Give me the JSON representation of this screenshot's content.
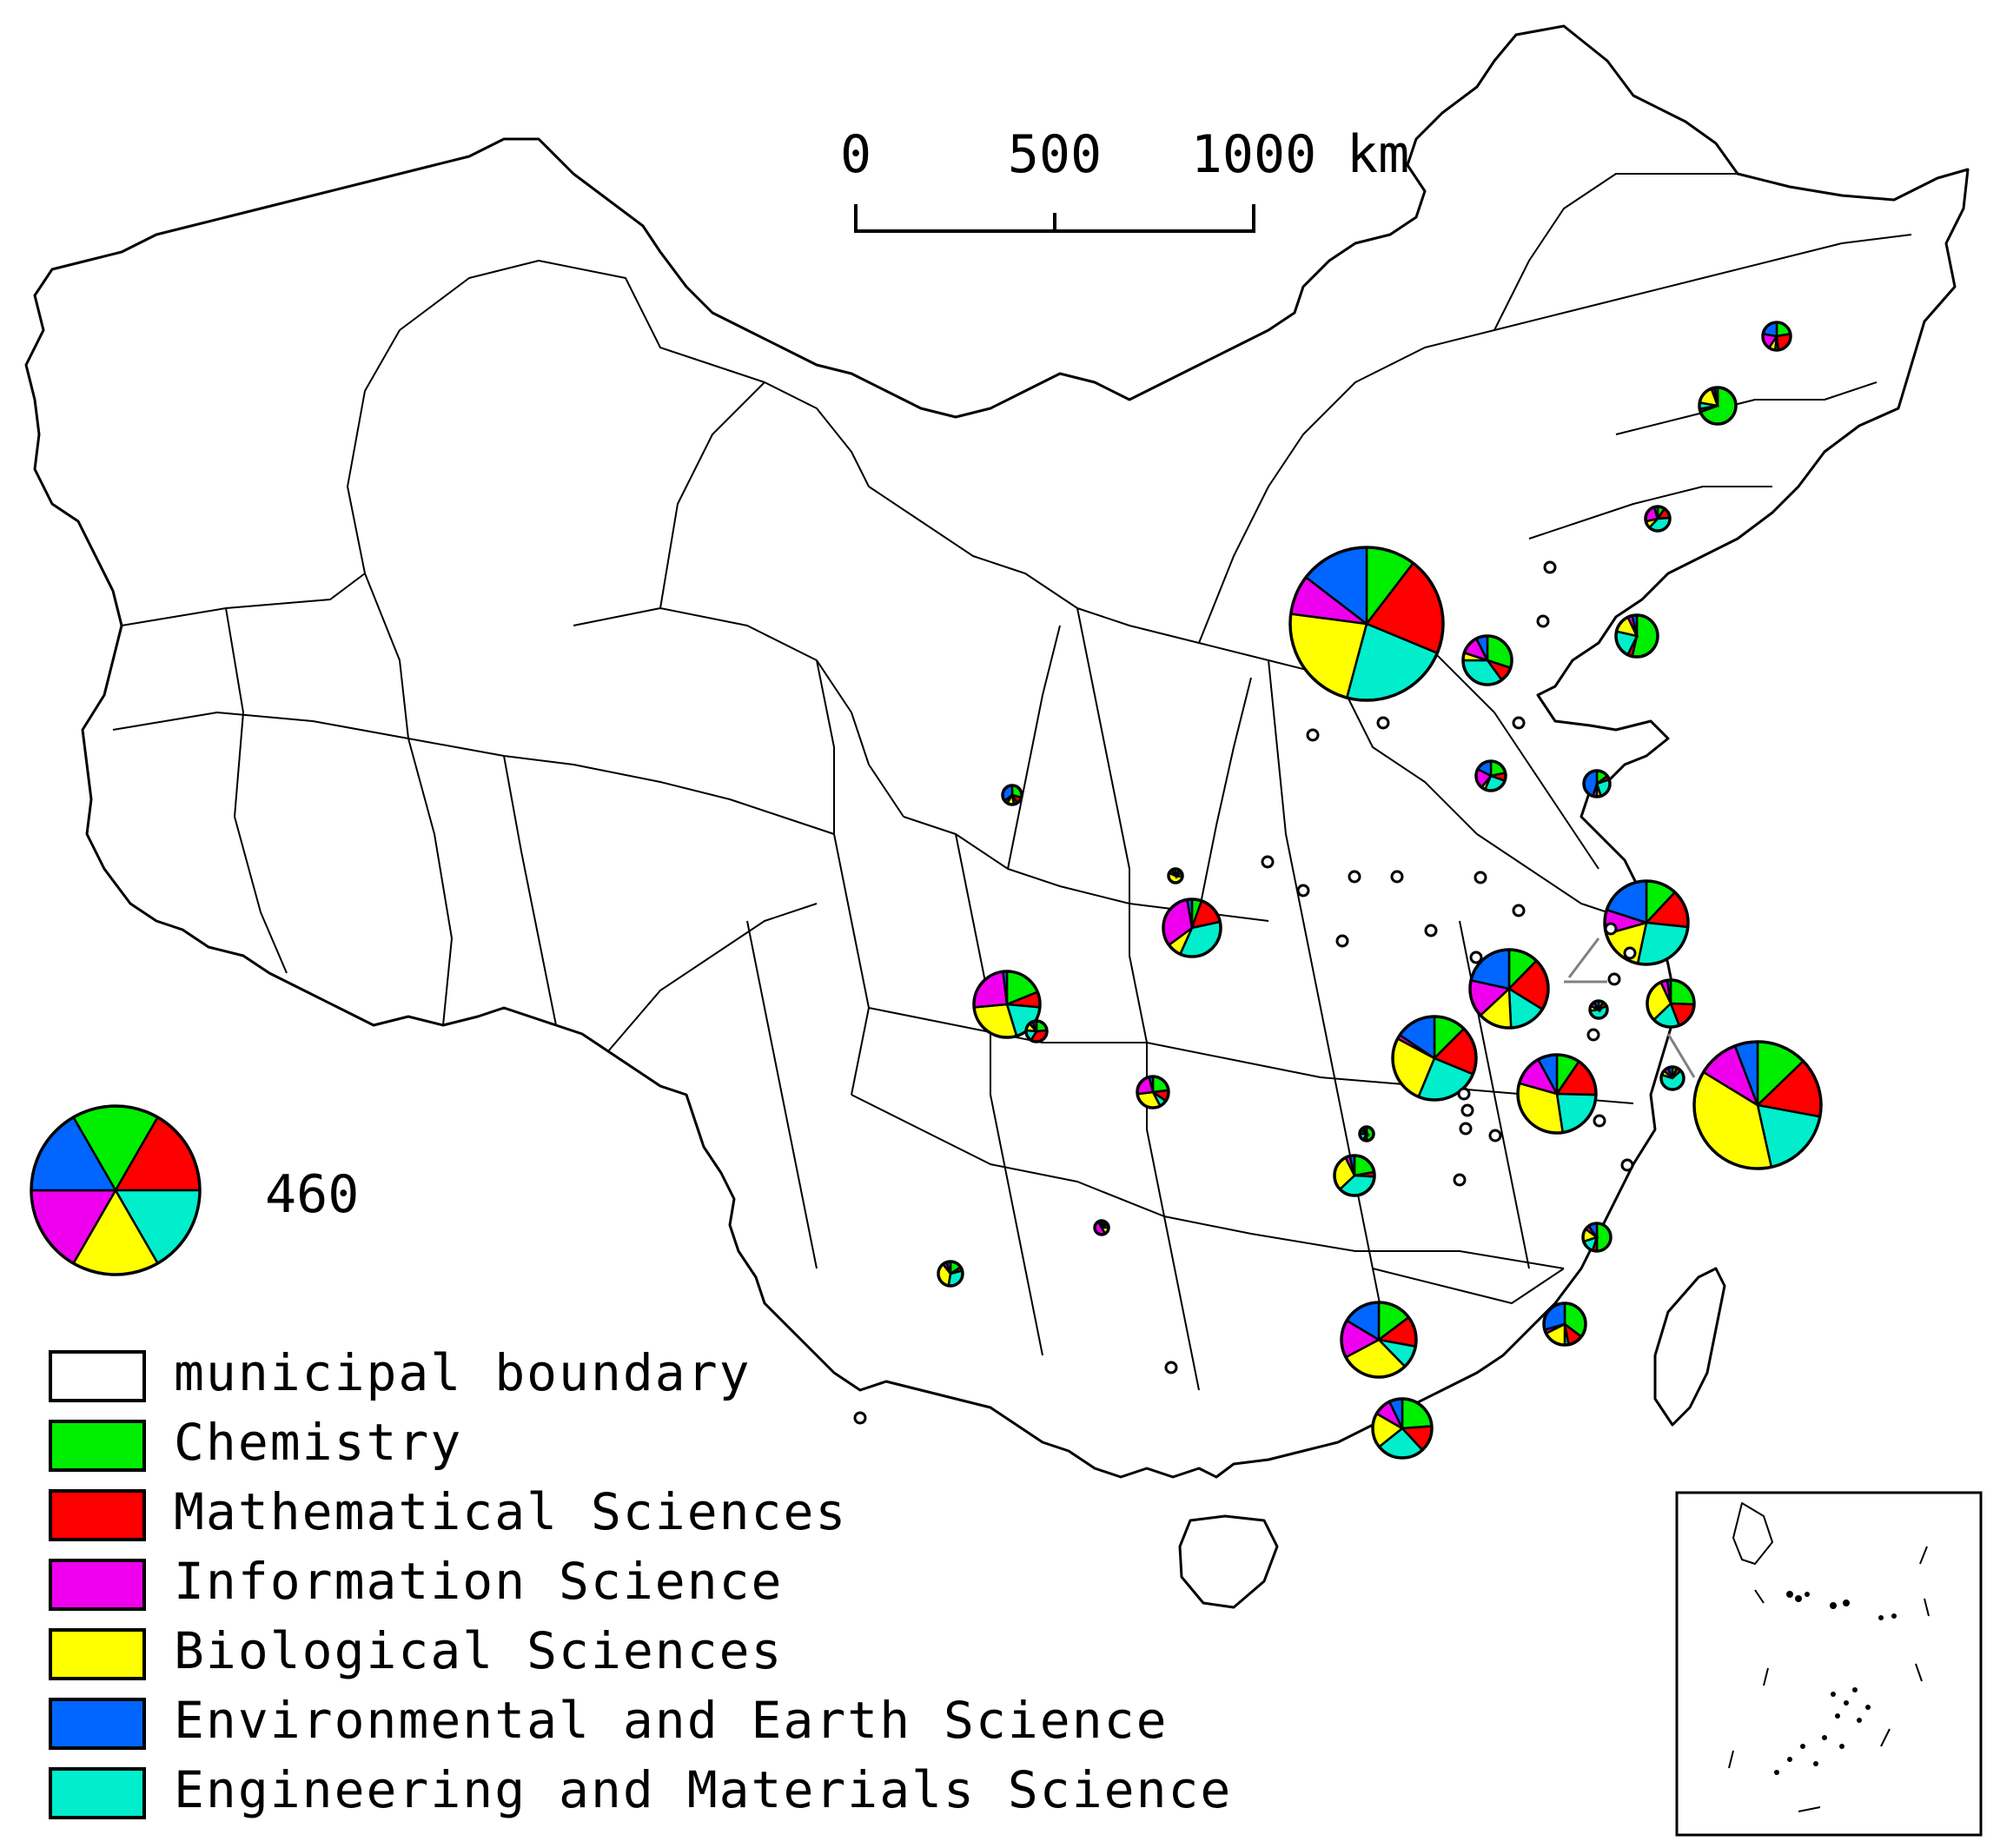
{
  "colors": {
    "Chemistry": "#00ee00",
    "Mathematical Sciences": "#ff0000",
    "Information Science": "#ee00ee",
    "Biological Sciences": "#ffff00",
    "Environmental and Earth Science": "#0066ff",
    "Engineering and Materials Science": "#00eecc",
    "municipal boundary": "#ffffff"
  },
  "scale_bar": {
    "labels": [
      "0",
      "500",
      "1000"
    ],
    "unit": "km"
  },
  "size_legend": {
    "value": "460",
    "shares": [
      1,
      1,
      1,
      1,
      1,
      1
    ]
  },
  "legend": {
    "items": [
      {
        "label": "municipal boundary",
        "key": "municipal boundary"
      },
      {
        "label": "Chemistry",
        "key": "Chemistry"
      },
      {
        "label": "Mathematical Sciences",
        "key": "Mathematical Sciences"
      },
      {
        "label": "Information Science",
        "key": "Information Science"
      },
      {
        "label": "Biological Sciences",
        "key": "Biological Sciences"
      },
      {
        "label": "Environmental and Earth Science",
        "key": "Environmental and Earth Science"
      },
      {
        "label": "Engineering and Materials Science",
        "key": "Engineering and Materials Science"
      }
    ]
  },
  "pie_order": [
    "Chemistry",
    "Mathematical Sciences",
    "Engineering and Materials Science",
    "Biological Sciences",
    "Information Science",
    "Environmental and Earth Science"
  ]
}
